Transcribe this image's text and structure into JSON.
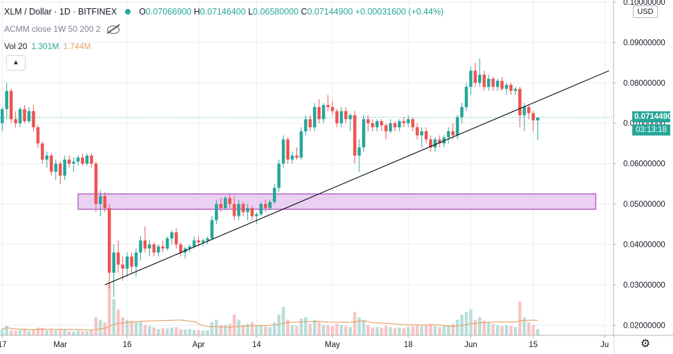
{
  "legend": {
    "symbol": "XLM / Dollar · 1D · BITFINEX",
    "o_label": "O",
    "o": "0.07066900",
    "h_label": "H",
    "h": "0.07146400",
    "l_label": "L",
    "l": "0.06580000",
    "c_label": "C",
    "c": "0.07144900",
    "change": "+0.00031600 (+0.44%)"
  },
  "indicators": {
    "acmm": "ACMM close 1W 50 200 2",
    "vol_label": "Vol 20",
    "vol_value1": "1.301M",
    "vol_value2": "1.744M"
  },
  "axis": {
    "currency": "USD",
    "current_price": "0.07144900",
    "countdown": "03:13:18"
  },
  "icons": {
    "collapse": "chevron-up-icon",
    "visibility": "eye-off-icon",
    "settings": "gear-icon"
  },
  "colors": {
    "up": "#26a69a",
    "down": "#ef5350",
    "zone_fill": "#e6c8ef",
    "zone_border": "#9c27b0",
    "trendline": "#131722"
  },
  "chart_data": {
    "type": "candlestick",
    "title": "XLM / Dollar · 1D · BITFINEX",
    "y_ticks": [
      "0.10000000",
      "0.09000000",
      "0.08000000",
      "0.07000000",
      "0.06000000",
      "0.05000000",
      "0.04000000",
      "0.03000000",
      "0.02000000"
    ],
    "y_tick_values": [
      0.1,
      0.09,
      0.08,
      0.07,
      0.06,
      0.05,
      0.04,
      0.03,
      0.02
    ],
    "x_ticks": [
      {
        "label": "17",
        "day": 0
      },
      {
        "label": "Mar",
        "day": 13
      },
      {
        "label": "16",
        "day": 28
      },
      {
        "label": "Apr",
        "day": 44
      },
      {
        "label": "14",
        "day": 57
      },
      {
        "label": "May",
        "day": 74
      },
      {
        "label": "18",
        "day": 91
      },
      {
        "label": "Jun",
        "day": 105
      },
      {
        "label": "15",
        "day": 119
      },
      {
        "label": "Ju",
        "day": 135
      }
    ],
    "ylim": [
      0.0175,
      0.1005
    ],
    "xlim": [
      -0.5,
      137
    ],
    "zone": {
      "from_day": 17,
      "to_day": 133,
      "low": 0.0487,
      "high": 0.0525
    },
    "trendline": {
      "x1": 23,
      "y1": 0.03,
      "x2": 136,
      "y2": 0.083
    },
    "candles": [
      [
        0.07,
        0.074,
        0.068,
        0.0735
      ],
      [
        0.0735,
        0.08,
        0.071,
        0.078
      ],
      [
        0.078,
        0.0785,
        0.07,
        0.071
      ],
      [
        0.071,
        0.073,
        0.069,
        0.07
      ],
      [
        0.07,
        0.074,
        0.069,
        0.0735
      ],
      [
        0.0735,
        0.0745,
        0.07,
        0.0705
      ],
      [
        0.0705,
        0.074,
        0.07,
        0.073
      ],
      [
        0.073,
        0.0745,
        0.068,
        0.069
      ],
      [
        0.069,
        0.0695,
        0.064,
        0.065
      ],
      [
        0.065,
        0.0655,
        0.06,
        0.061
      ],
      [
        0.061,
        0.063,
        0.059,
        0.062
      ],
      [
        0.062,
        0.0625,
        0.057,
        0.058
      ],
      [
        0.058,
        0.061,
        0.056,
        0.06
      ],
      [
        0.06,
        0.0605,
        0.055,
        0.057
      ],
      [
        0.057,
        0.062,
        0.056,
        0.061
      ],
      [
        0.061,
        0.062,
        0.059,
        0.06
      ],
      [
        0.06,
        0.0615,
        0.058,
        0.0605
      ],
      [
        0.0605,
        0.062,
        0.0595,
        0.0615
      ],
      [
        0.0615,
        0.0625,
        0.0595,
        0.06
      ],
      [
        0.06,
        0.0625,
        0.0595,
        0.062
      ],
      [
        0.062,
        0.0625,
        0.059,
        0.06
      ],
      [
        0.06,
        0.0605,
        0.048,
        0.05
      ],
      [
        0.05,
        0.0535,
        0.047,
        0.052
      ],
      [
        0.052,
        0.053,
        0.048,
        0.049
      ],
      [
        0.049,
        0.05,
        0.029,
        0.033
      ],
      [
        0.033,
        0.04,
        0.027,
        0.038
      ],
      [
        0.038,
        0.041,
        0.033,
        0.035
      ],
      [
        0.035,
        0.037,
        0.031,
        0.034
      ],
      [
        0.034,
        0.038,
        0.032,
        0.037
      ],
      [
        0.037,
        0.038,
        0.033,
        0.0345
      ],
      [
        0.0345,
        0.039,
        0.032,
        0.038
      ],
      [
        0.038,
        0.042,
        0.036,
        0.041
      ],
      [
        0.041,
        0.0445,
        0.038,
        0.039
      ],
      [
        0.039,
        0.041,
        0.037,
        0.04
      ],
      [
        0.04,
        0.0405,
        0.037,
        0.038
      ],
      [
        0.038,
        0.04,
        0.037,
        0.0395
      ],
      [
        0.0395,
        0.041,
        0.038,
        0.039
      ],
      [
        0.039,
        0.042,
        0.0385,
        0.0415
      ],
      [
        0.0415,
        0.0435,
        0.04,
        0.043
      ],
      [
        0.043,
        0.044,
        0.039,
        0.04
      ],
      [
        0.04,
        0.0405,
        0.037,
        0.038
      ],
      [
        0.038,
        0.0395,
        0.0365,
        0.039
      ],
      [
        0.039,
        0.04,
        0.038,
        0.0395
      ],
      [
        0.0395,
        0.042,
        0.039,
        0.041
      ],
      [
        0.041,
        0.042,
        0.0395,
        0.0405
      ],
      [
        0.0405,
        0.0415,
        0.0395,
        0.041
      ],
      [
        0.041,
        0.042,
        0.04,
        0.0415
      ],
      [
        0.0415,
        0.047,
        0.041,
        0.046
      ],
      [
        0.046,
        0.051,
        0.045,
        0.05
      ],
      [
        0.05,
        0.0515,
        0.048,
        0.049
      ],
      [
        0.049,
        0.052,
        0.0485,
        0.0515
      ],
      [
        0.0515,
        0.0525,
        0.049,
        0.05
      ],
      [
        0.05,
        0.052,
        0.046,
        0.047
      ],
      [
        0.047,
        0.051,
        0.046,
        0.05
      ],
      [
        0.05,
        0.0505,
        0.047,
        0.048
      ],
      [
        0.048,
        0.05,
        0.046,
        0.049
      ],
      [
        0.049,
        0.0495,
        0.046,
        0.047
      ],
      [
        0.047,
        0.048,
        0.045,
        0.0475
      ],
      [
        0.0475,
        0.0505,
        0.047,
        0.05
      ],
      [
        0.05,
        0.051,
        0.048,
        0.049
      ],
      [
        0.049,
        0.051,
        0.0485,
        0.0505
      ],
      [
        0.0505,
        0.055,
        0.05,
        0.054
      ],
      [
        0.054,
        0.061,
        0.053,
        0.06
      ],
      [
        0.06,
        0.067,
        0.059,
        0.066
      ],
      [
        0.066,
        0.0665,
        0.06,
        0.061
      ],
      [
        0.061,
        0.063,
        0.06,
        0.062
      ],
      [
        0.062,
        0.064,
        0.061,
        0.0615
      ],
      [
        0.0615,
        0.069,
        0.061,
        0.068
      ],
      [
        0.068,
        0.072,
        0.067,
        0.071
      ],
      [
        0.071,
        0.072,
        0.068,
        0.069
      ],
      [
        0.069,
        0.075,
        0.068,
        0.074
      ],
      [
        0.074,
        0.076,
        0.07,
        0.071
      ],
      [
        0.071,
        0.075,
        0.07,
        0.0745
      ],
      [
        0.0745,
        0.077,
        0.073,
        0.074
      ],
      [
        0.074,
        0.0755,
        0.072,
        0.073
      ],
      [
        0.073,
        0.0735,
        0.069,
        0.07
      ],
      [
        0.07,
        0.074,
        0.069,
        0.073
      ],
      [
        0.073,
        0.074,
        0.07,
        0.071
      ],
      [
        0.071,
        0.0725,
        0.068,
        0.072
      ],
      [
        0.072,
        0.073,
        0.06,
        0.062
      ],
      [
        0.062,
        0.066,
        0.058,
        0.064
      ],
      [
        0.064,
        0.072,
        0.063,
        0.071
      ],
      [
        0.071,
        0.072,
        0.068,
        0.07
      ],
      [
        0.07,
        0.071,
        0.068,
        0.069
      ],
      [
        0.069,
        0.071,
        0.068,
        0.0705
      ],
      [
        0.0705,
        0.071,
        0.068,
        0.0695
      ],
      [
        0.0695,
        0.07,
        0.066,
        0.068
      ],
      [
        0.068,
        0.071,
        0.0675,
        0.07
      ],
      [
        0.07,
        0.0705,
        0.068,
        0.069
      ],
      [
        0.069,
        0.071,
        0.068,
        0.0705
      ],
      [
        0.0705,
        0.0715,
        0.069,
        0.07
      ],
      [
        0.07,
        0.072,
        0.069,
        0.071
      ],
      [
        0.071,
        0.0715,
        0.068,
        0.069
      ],
      [
        0.069,
        0.07,
        0.066,
        0.067
      ],
      [
        0.067,
        0.069,
        0.064,
        0.068
      ],
      [
        0.068,
        0.069,
        0.065,
        0.066
      ],
      [
        0.066,
        0.067,
        0.063,
        0.064
      ],
      [
        0.064,
        0.0665,
        0.063,
        0.066
      ],
      [
        0.066,
        0.067,
        0.064,
        0.065
      ],
      [
        0.065,
        0.067,
        0.064,
        0.0665
      ],
      [
        0.0665,
        0.069,
        0.065,
        0.068
      ],
      [
        0.068,
        0.07,
        0.066,
        0.067
      ],
      [
        0.067,
        0.072,
        0.066,
        0.0715
      ],
      [
        0.0715,
        0.075,
        0.07,
        0.074
      ],
      [
        0.074,
        0.08,
        0.073,
        0.079
      ],
      [
        0.079,
        0.084,
        0.077,
        0.083
      ],
      [
        0.083,
        0.085,
        0.079,
        0.08
      ],
      [
        0.08,
        0.086,
        0.079,
        0.082
      ],
      [
        0.082,
        0.083,
        0.078,
        0.079
      ],
      [
        0.079,
        0.082,
        0.078,
        0.081
      ],
      [
        0.081,
        0.0815,
        0.078,
        0.079
      ],
      [
        0.079,
        0.081,
        0.078,
        0.0805
      ],
      [
        0.0805,
        0.0815,
        0.078,
        0.0785
      ],
      [
        0.0785,
        0.08,
        0.077,
        0.0795
      ],
      [
        0.0795,
        0.08,
        0.077,
        0.078
      ],
      [
        0.078,
        0.079,
        0.077,
        0.0785
      ],
      [
        0.0785,
        0.079,
        0.069,
        0.072
      ],
      [
        0.072,
        0.075,
        0.068,
        0.074
      ],
      [
        0.074,
        0.0745,
        0.071,
        0.0725
      ],
      [
        0.0725,
        0.073,
        0.068,
        0.0707
      ],
      [
        0.0707,
        0.0715,
        0.0658,
        0.0714
      ]
    ],
    "volume_relative": [
      0.12,
      0.18,
      0.1,
      0.09,
      0.1,
      0.11,
      0.08,
      0.12,
      0.15,
      0.14,
      0.1,
      0.12,
      0.1,
      0.11,
      0.12,
      0.08,
      0.07,
      0.09,
      0.08,
      0.08,
      0.1,
      0.35,
      0.3,
      0.25,
      1.0,
      0.7,
      0.5,
      0.35,
      0.3,
      0.28,
      0.25,
      0.27,
      0.2,
      0.18,
      0.15,
      0.12,
      0.14,
      0.13,
      0.15,
      0.16,
      0.12,
      0.11,
      0.12,
      0.1,
      0.1,
      0.09,
      0.1,
      0.25,
      0.3,
      0.2,
      0.2,
      0.22,
      0.4,
      0.3,
      0.2,
      0.22,
      0.25,
      0.18,
      0.2,
      0.17,
      0.16,
      0.25,
      0.4,
      0.55,
      0.3,
      0.2,
      0.18,
      0.32,
      0.35,
      0.22,
      0.3,
      0.25,
      0.2,
      0.2,
      0.18,
      0.22,
      0.2,
      0.18,
      0.16,
      0.45,
      0.35,
      0.3,
      0.2,
      0.15,
      0.16,
      0.15,
      0.18,
      0.16,
      0.14,
      0.15,
      0.14,
      0.16,
      0.17,
      0.2,
      0.18,
      0.2,
      0.22,
      0.18,
      0.16,
      0.18,
      0.2,
      0.22,
      0.3,
      0.4,
      0.45,
      0.5,
      0.3,
      0.35,
      0.28,
      0.25,
      0.22,
      0.2,
      0.18,
      0.2,
      0.18,
      0.16,
      0.65,
      0.35,
      0.25,
      0.2,
      0.12
    ]
  }
}
